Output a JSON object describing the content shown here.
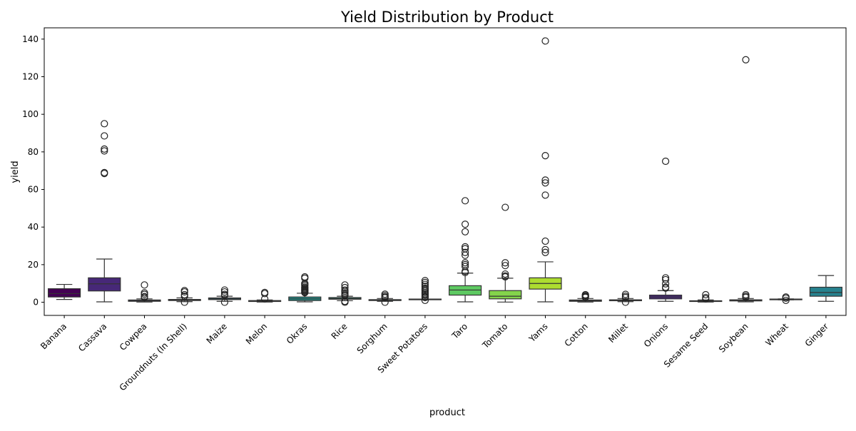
{
  "chart_data": {
    "type": "box",
    "title": "Yield Distribution by Product",
    "xlabel": "product",
    "ylabel": "yield",
    "ylim": [
      -7,
      146
    ],
    "yticks": [
      0,
      20,
      40,
      60,
      80,
      100,
      120,
      140
    ],
    "grid": false,
    "legend": "none",
    "series": [
      {
        "category": "Banana",
        "color": "#440154",
        "whisker_low": 1.5,
        "q1": 2.8,
        "median": 4.6,
        "q3": 7.2,
        "whisker_high": 9.5,
        "outliers": []
      },
      {
        "category": "Cassava",
        "color": "#472878",
        "whisker_low": 0.2,
        "q1": 6.0,
        "median": 9.8,
        "q3": 13.0,
        "whisker_high": 23.0,
        "outliers": [
          95.0,
          88.5,
          81.5,
          80.5,
          69.0,
          68.5
        ]
      },
      {
        "category": "Cowpea",
        "color": "#3e4a89",
        "whisker_low": 0.1,
        "q1": 0.5,
        "median": 0.9,
        "q3": 1.2,
        "whisker_high": 1.8,
        "outliers": [
          9.2,
          5.0,
          4.2,
          3.0,
          2.5
        ]
      },
      {
        "category": "Groundnuts (In Shell)",
        "color": "#35608d",
        "whisker_low": 0.3,
        "q1": 0.9,
        "median": 1.2,
        "q3": 1.5,
        "whisker_high": 2.3,
        "outliers": [
          6.2,
          5.5,
          4.0,
          3.2,
          0.0
        ]
      },
      {
        "category": "Maize",
        "color": "#2c728e",
        "whisker_low": 0.5,
        "q1": 1.4,
        "median": 1.8,
        "q3": 2.3,
        "whisker_high": 3.2,
        "outliers": [
          6.5,
          5.5,
          4.2,
          3.6,
          0.0
        ]
      },
      {
        "category": "Melon",
        "color": "#26828e",
        "whisker_low": 0.1,
        "q1": 0.4,
        "median": 0.7,
        "q3": 0.9,
        "whisker_high": 1.2,
        "outliers": [
          5.2,
          4.6,
          1.8
        ]
      },
      {
        "category": "Okras",
        "color": "#21918c",
        "whisker_low": 0.2,
        "q1": 0.9,
        "median": 1.8,
        "q3": 2.8,
        "whisker_high": 4.8,
        "outliers": [
          13.5,
          12.8,
          10.0,
          9.5,
          8.8,
          8.0,
          7.5,
          7.0,
          6.5,
          6.0,
          5.5,
          5.1
        ]
      },
      {
        "category": "Rice",
        "color": "#1fa088",
        "whisker_low": 0.8,
        "q1": 1.6,
        "median": 2.0,
        "q3": 2.5,
        "whisker_high": 3.2,
        "outliers": [
          9.2,
          7.8,
          6.5,
          5.8,
          5.0,
          4.2,
          3.6,
          0.5,
          0.0
        ]
      },
      {
        "category": "Sorghum",
        "color": "#28ae80",
        "whisker_low": 0.5,
        "q1": 0.9,
        "median": 1.1,
        "q3": 1.4,
        "whisker_high": 2.0,
        "outliers": [
          4.3,
          3.5,
          2.8,
          2.4,
          0.0
        ]
      },
      {
        "category": "Sweet Potatoes",
        "color": "#3fbc73",
        "whisker_low": 1.6,
        "q1": 1.6,
        "median": 1.6,
        "q3": 1.7,
        "whisker_high": 1.7,
        "outliers": [
          11.5,
          10.5,
          9.5,
          8.5,
          7.5,
          6.8,
          6.0,
          5.2,
          4.5,
          3.8,
          3.0,
          2.5,
          1.0
        ]
      },
      {
        "category": "Taro",
        "color": "#5ec962",
        "whisker_low": 0.2,
        "q1": 3.8,
        "median": 6.5,
        "q3": 8.8,
        "whisker_high": 15.5,
        "outliers": [
          54.0,
          41.5,
          37.5,
          29.5,
          28.5,
          26.5,
          25.0,
          21.0,
          20.0,
          19.0,
          16.5,
          15.8
        ]
      },
      {
        "category": "Tomato",
        "color": "#84d44b",
        "whisker_low": 0.1,
        "q1": 1.8,
        "median": 3.2,
        "q3": 6.2,
        "whisker_high": 12.8,
        "outliers": [
          50.5,
          21.0,
          19.5,
          15.0,
          14.0,
          13.5
        ]
      },
      {
        "category": "Yams",
        "color": "#addc30",
        "whisker_low": 0.2,
        "q1": 7.0,
        "median": 10.0,
        "q3": 13.0,
        "whisker_high": 21.5,
        "outliers": [
          139.0,
          78.0,
          65.0,
          63.5,
          57.0,
          32.5,
          28.0,
          26.5
        ]
      },
      {
        "category": "Cotton",
        "color": "#d8e219",
        "whisker_low": 0.1,
        "q1": 0.5,
        "median": 0.8,
        "q3": 1.2,
        "whisker_high": 2.0,
        "outliers": [
          4.0,
          3.5,
          3.0,
          2.6
        ]
      },
      {
        "category": "Millet",
        "color": "#440154",
        "whisker_low": 0.3,
        "q1": 0.8,
        "median": 1.0,
        "q3": 1.3,
        "whisker_high": 2.0,
        "outliers": [
          4.2,
          3.2,
          2.5,
          0.0
        ]
      },
      {
        "category": "Onions",
        "color": "#472878",
        "whisker_low": 0.5,
        "q1": 1.8,
        "median": 2.8,
        "q3": 3.8,
        "whisker_high": 6.2,
        "outliers": [
          75.0,
          13.0,
          12.0,
          9.8,
          8.0,
          7.5
        ]
      },
      {
        "category": "Sesame Seed",
        "color": "#3e4a89",
        "whisker_low": 0.1,
        "q1": 0.4,
        "median": 0.6,
        "q3": 0.8,
        "whisker_high": 1.2,
        "outliers": [
          4.0,
          2.5,
          1.8
        ]
      },
      {
        "category": "Soybean",
        "color": "#35608d",
        "whisker_low": 0.2,
        "q1": 0.7,
        "median": 1.0,
        "q3": 1.3,
        "whisker_high": 2.0,
        "outliers": [
          129.0,
          4.0,
          3.2,
          2.6
        ]
      },
      {
        "category": "Wheat",
        "color": "#2c728e",
        "whisker_low": 1.3,
        "q1": 1.5,
        "median": 1.6,
        "q3": 1.7,
        "whisker_high": 1.8,
        "outliers": [
          2.8,
          2.2,
          1.0
        ]
      },
      {
        "category": "Ginger",
        "color": "#26828e",
        "whisker_low": 0.5,
        "q1": 3.2,
        "median": 5.2,
        "q3": 8.0,
        "whisker_high": 14.2,
        "outliers": []
      }
    ]
  }
}
